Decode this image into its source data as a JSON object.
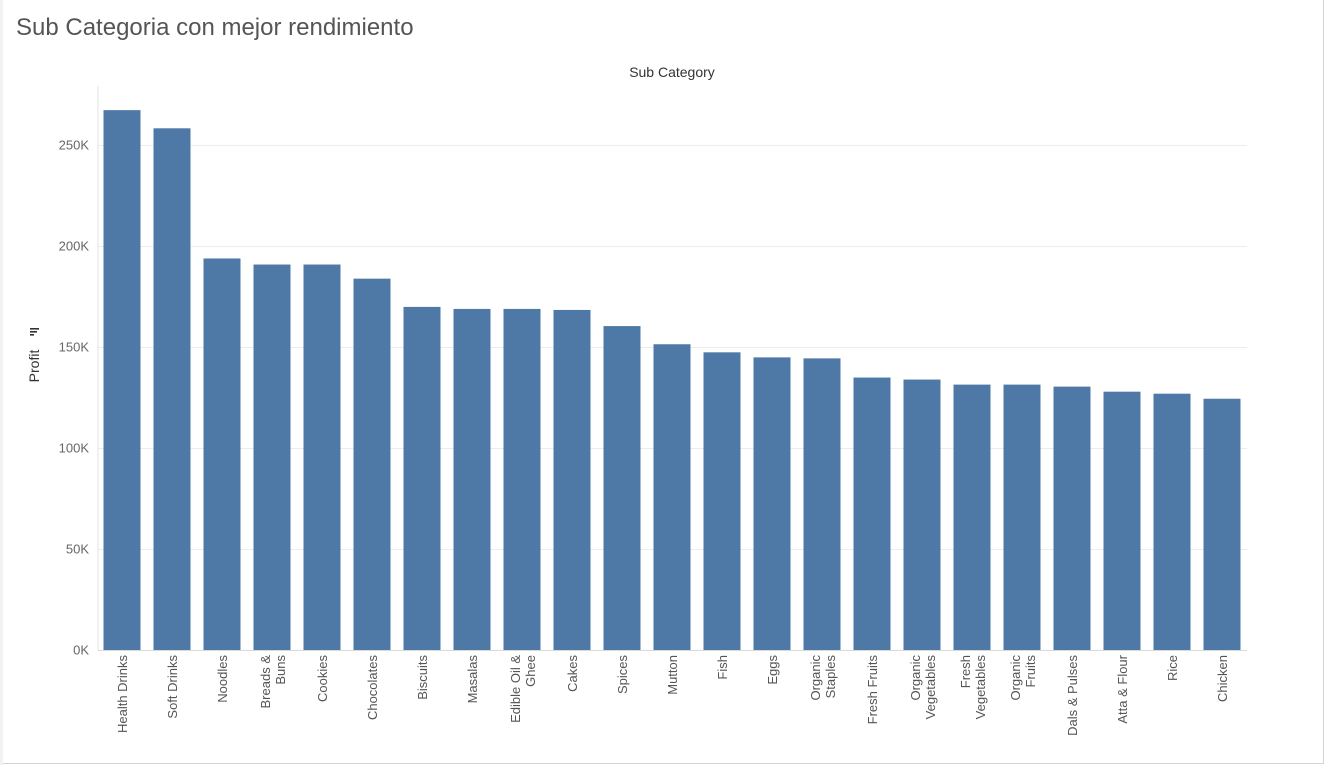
{
  "page": {
    "title": "Sub Categoria con mejor rendimiento"
  },
  "chart_data": {
    "type": "bar",
    "title": "Sub Categoria con mejor rendimiento",
    "xlabel": "Sub Category",
    "ylabel": "Profit",
    "ylim": [
      0,
      275000
    ],
    "yticks": [
      0,
      50000,
      100000,
      150000,
      200000,
      250000
    ],
    "ytick_labels": [
      "0K",
      "50K",
      "100K",
      "150K",
      "200K",
      "250K"
    ],
    "grid": true,
    "bar_color": "#4e79a7",
    "sort_icon": "sort-descending-icon",
    "categories": [
      "Health Drinks",
      "Soft Drinks",
      "Noodles",
      "Breads & Buns",
      "Cookies",
      "Chocolates",
      "Biscuits",
      "Masalas",
      "Edible Oil & Ghee",
      "Cakes",
      "Spices",
      "Mutton",
      "Fish",
      "Eggs",
      "Organic Staples",
      "Fresh Fruits",
      "Organic Vegetables",
      "Fresh Vegetables",
      "Organic Fruits",
      "Dals & Pulses",
      "Atta & Flour",
      "Rice",
      "Chicken"
    ],
    "category_lines": [
      [
        "Health Drinks"
      ],
      [
        "Soft Drinks"
      ],
      [
        "Noodles"
      ],
      [
        "Breads &",
        "Buns"
      ],
      [
        "Cookies"
      ],
      [
        "Chocolates"
      ],
      [
        "Biscuits"
      ],
      [
        "Masalas"
      ],
      [
        "Edible Oil &",
        "Ghee"
      ],
      [
        "Cakes"
      ],
      [
        "Spices"
      ],
      [
        "Mutton"
      ],
      [
        "Fish"
      ],
      [
        "Eggs"
      ],
      [
        "Organic",
        "Staples"
      ],
      [
        "Fresh Fruits"
      ],
      [
        "Organic",
        "Vegetables"
      ],
      [
        "Fresh",
        "Vegetables"
      ],
      [
        "Organic",
        "Fruits"
      ],
      [
        "Dals & Pulses"
      ],
      [
        "Atta & Flour"
      ],
      [
        "Rice"
      ],
      [
        "Chicken"
      ]
    ],
    "values": [
      267500,
      258500,
      194000,
      191000,
      191000,
      184000,
      170000,
      169000,
      169000,
      168500,
      160500,
      151500,
      147500,
      145000,
      144500,
      135000,
      134000,
      131500,
      131500,
      130500,
      128000,
      127000,
      124500
    ]
  }
}
